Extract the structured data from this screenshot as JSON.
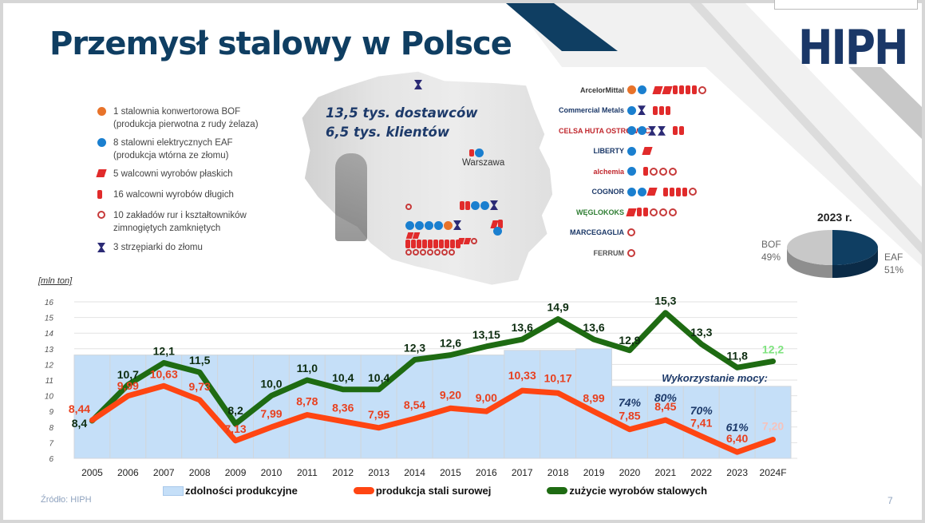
{
  "slide": {
    "title": "Przemysł stalowy w Polsce",
    "logo": "HIPH",
    "source": "Źródło: HIPH",
    "page_number": "7"
  },
  "legend_top": [
    {
      "symbol": "orange-dot-icon",
      "text": "1 stalownia konwertorowa BOF",
      "text2": "(produkcja pierwotna z rudy żelaza)"
    },
    {
      "symbol": "blue-dot-icon",
      "text": "8 stalowni elektrycznych EAF",
      "text2": "(produkcja wtórna ze złomu)"
    },
    {
      "symbol": "flat-product-icon",
      "text": "5 walcowni wyrobów płaskich",
      "text2": ""
    },
    {
      "symbol": "long-product-icon",
      "text": "16 walcowni wyrobów długich",
      "text2": ""
    },
    {
      "symbol": "ring-icon",
      "text": "10 zakładów rur i kształtowników",
      "text2": "zimnogiętych zamkniętych"
    },
    {
      "symbol": "shredder-icon",
      "text": "3 strzępiarki do złomu",
      "text2": ""
    }
  ],
  "map": {
    "line1": "13,5 tys. dostawców",
    "line2": "6,5 tys. klientów",
    "city": "Warszawa"
  },
  "companies": [
    {
      "name": "ArcelorMittal",
      "color": "#333333",
      "symbols": [
        "or",
        "bl",
        "gap",
        "fl",
        "fl",
        "lo",
        "lo",
        "lo",
        "lo",
        "ri"
      ]
    },
    {
      "name": "Commercial Metals",
      "color": "#1a3767",
      "symbols": [
        "bl",
        "hg",
        "gap",
        "lo",
        "lo",
        "lo"
      ]
    },
    {
      "name": "CELSA HUTA OSTROWIEC",
      "color": "#c0272d",
      "symbols": [
        "bl",
        "bl",
        "hg",
        "hg",
        "gap",
        "lo",
        "lo"
      ]
    },
    {
      "name": "LIBERTY",
      "color": "#1a3767",
      "symbols": [
        "bl",
        "gap",
        "fl"
      ]
    },
    {
      "name": "alchemia",
      "color": "#c0272d",
      "symbols": [
        "bl",
        "gap",
        "lo",
        "ri",
        "ri",
        "ri"
      ]
    },
    {
      "name": "COGNOR",
      "color": "#1a3767",
      "symbols": [
        "bl",
        "bl",
        "fl",
        "gap",
        "lo",
        "lo",
        "lo",
        "lo",
        "ri"
      ]
    },
    {
      "name": "WĘGLOKOKS",
      "color": "#2e7d32",
      "symbols": [
        "fl",
        "lo",
        "lo",
        "ri",
        "ri",
        "ri"
      ]
    },
    {
      "name": "MARCEGAGLIA",
      "color": "#1a3767",
      "symbols": [
        "ri"
      ]
    },
    {
      "name": "FERRUM",
      "color": "#555555",
      "symbols": [
        "ri"
      ]
    }
  ],
  "pie": {
    "title": "2023 r.",
    "slices": [
      {
        "label": "BOF",
        "pct": "49%",
        "value": 49,
        "color": "#c8c8c8"
      },
      {
        "label": "EAF",
        "pct": "51%",
        "value": 51,
        "color": "#0f3e62"
      }
    ]
  },
  "chart_labels": {
    "unit": "[mln ton]",
    "capacity_note": "Wykorzystanie mocy:",
    "legend": [
      "zdolności produkcyjne",
      "produkcja stali surowej",
      "zużycie wyrobów stalowych"
    ]
  },
  "chart_data": {
    "type": "line",
    "title": "Przemysł stalowy w Polsce",
    "ylabel": "[mln ton]",
    "xlabel": "",
    "ylim": [
      6,
      16
    ],
    "yticks": [
      6,
      7,
      8,
      9,
      10,
      11,
      12,
      13,
      14,
      15,
      16
    ],
    "grid": true,
    "legend_position": "bottom",
    "categories": [
      "2005",
      "2006",
      "2007",
      "2008",
      "2009",
      "2010",
      "2011",
      "2012",
      "2013",
      "2014",
      "2015",
      "2016",
      "2017",
      "2018",
      "2019",
      "2020",
      "2021",
      "2022",
      "2023",
      "2024F"
    ],
    "series": [
      {
        "name": "zdolności produkcyjne",
        "type": "bar",
        "color": "#c5dff8",
        "values": [
          12.6,
          12.6,
          12.6,
          12.6,
          12.6,
          12.6,
          12.6,
          12.6,
          12.6,
          12.6,
          12.6,
          12.6,
          12.9,
          12.9,
          13.0,
          10.6,
          10.6,
          10.6,
          10.6,
          10.6
        ]
      },
      {
        "name": "produkcja stali surowej",
        "type": "line",
        "color": "#ff4512",
        "values": [
          8.44,
          9.99,
          10.63,
          9.73,
          7.13,
          7.99,
          8.78,
          8.36,
          7.95,
          8.54,
          9.2,
          9.0,
          10.33,
          10.17,
          8.99,
          7.85,
          8.45,
          7.41,
          6.4,
          7.2
        ],
        "labels": [
          "8,44",
          "9,99",
          "10,63",
          "9,73",
          "7,13",
          "7,99",
          "8,78",
          "8,36",
          "7,95",
          "8,54",
          "9,20",
          "9,00",
          "10,33",
          "10,17",
          "8,99",
          "7,85",
          "8,45",
          "7,41",
          "6,40",
          "7,20"
        ]
      },
      {
        "name": "zużycie wyrobów stalowych",
        "type": "line",
        "color": "#1e6b12",
        "values": [
          8.4,
          10.7,
          12.1,
          11.5,
          8.2,
          10.0,
          11.0,
          10.4,
          10.4,
          12.3,
          12.6,
          13.15,
          13.6,
          14.9,
          13.6,
          12.9,
          15.3,
          13.3,
          11.8,
          12.2
        ],
        "labels": [
          "8,4",
          "10,7",
          "12,1",
          "11,5",
          "8,2",
          "10,0",
          "11,0",
          "10,4",
          "10,4",
          "12,3",
          "12,6",
          "13,15",
          "13,6",
          "14,9",
          "13,6",
          "12,9",
          "15,3",
          "13,3",
          "11,8",
          "12,2"
        ]
      }
    ],
    "annotations": {
      "capacity_utilization_title": "Wykorzystanie mocy:",
      "capacity_utilization": {
        "2020": "74%",
        "2021": "80%",
        "2022": "70%",
        "2023": "61%"
      }
    }
  }
}
